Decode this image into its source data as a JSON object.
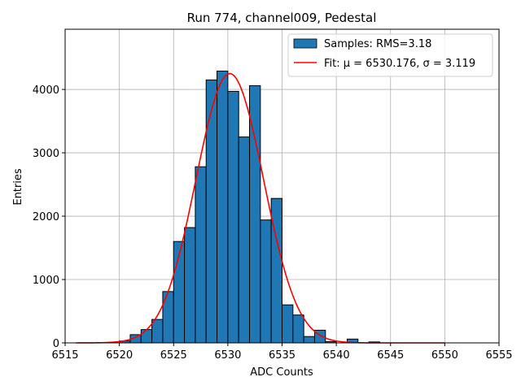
{
  "chart_data": {
    "type": "bar",
    "title": "Run 774, channel009, Pedestal",
    "xlabel": "ADC Counts",
    "ylabel": "Entries",
    "xlim": [
      6515,
      6555
    ],
    "ylim": [
      0,
      4950
    ],
    "grid": true,
    "legend_position": "top-right",
    "x_ticks": [
      6515,
      6520,
      6525,
      6530,
      6535,
      6540,
      6545,
      6550,
      6555
    ],
    "y_ticks": [
      0,
      1000,
      2000,
      3000,
      4000
    ],
    "bin_width": 1,
    "bins": [
      {
        "left": 6520,
        "count": 30
      },
      {
        "left": 6521,
        "count": 130
      },
      {
        "left": 6522,
        "count": 210
      },
      {
        "left": 6523,
        "count": 370
      },
      {
        "left": 6524,
        "count": 810
      },
      {
        "left": 6525,
        "count": 1600
      },
      {
        "left": 6526,
        "count": 1820
      },
      {
        "left": 6527,
        "count": 2780
      },
      {
        "left": 6528,
        "count": 4150
      },
      {
        "left": 6529,
        "count": 4290
      },
      {
        "left": 6530,
        "count": 3970
      },
      {
        "left": 6531,
        "count": 3250
      },
      {
        "left": 6532,
        "count": 4060
      },
      {
        "left": 6533,
        "count": 1940
      },
      {
        "left": 6534,
        "count": 2280
      },
      {
        "left": 6535,
        "count": 600
      },
      {
        "left": 6536,
        "count": 440
      },
      {
        "left": 6537,
        "count": 100
      },
      {
        "left": 6538,
        "count": 200
      },
      {
        "left": 6539,
        "count": 20
      },
      {
        "left": 6541,
        "count": 60
      },
      {
        "left": 6543,
        "count": 15
      }
    ],
    "fit": {
      "mu": 6530.176,
      "sigma": 3.119,
      "amplitude": 4250,
      "x_range": [
        6516,
        6550
      ]
    },
    "series": [
      {
        "name": "Samples: RMS=3.18",
        "kind": "histogram",
        "color": "#1f77b4"
      },
      {
        "name": "Fit: μ = 6530.176, σ = 3.119",
        "kind": "line",
        "color": "#ff0000"
      }
    ]
  }
}
